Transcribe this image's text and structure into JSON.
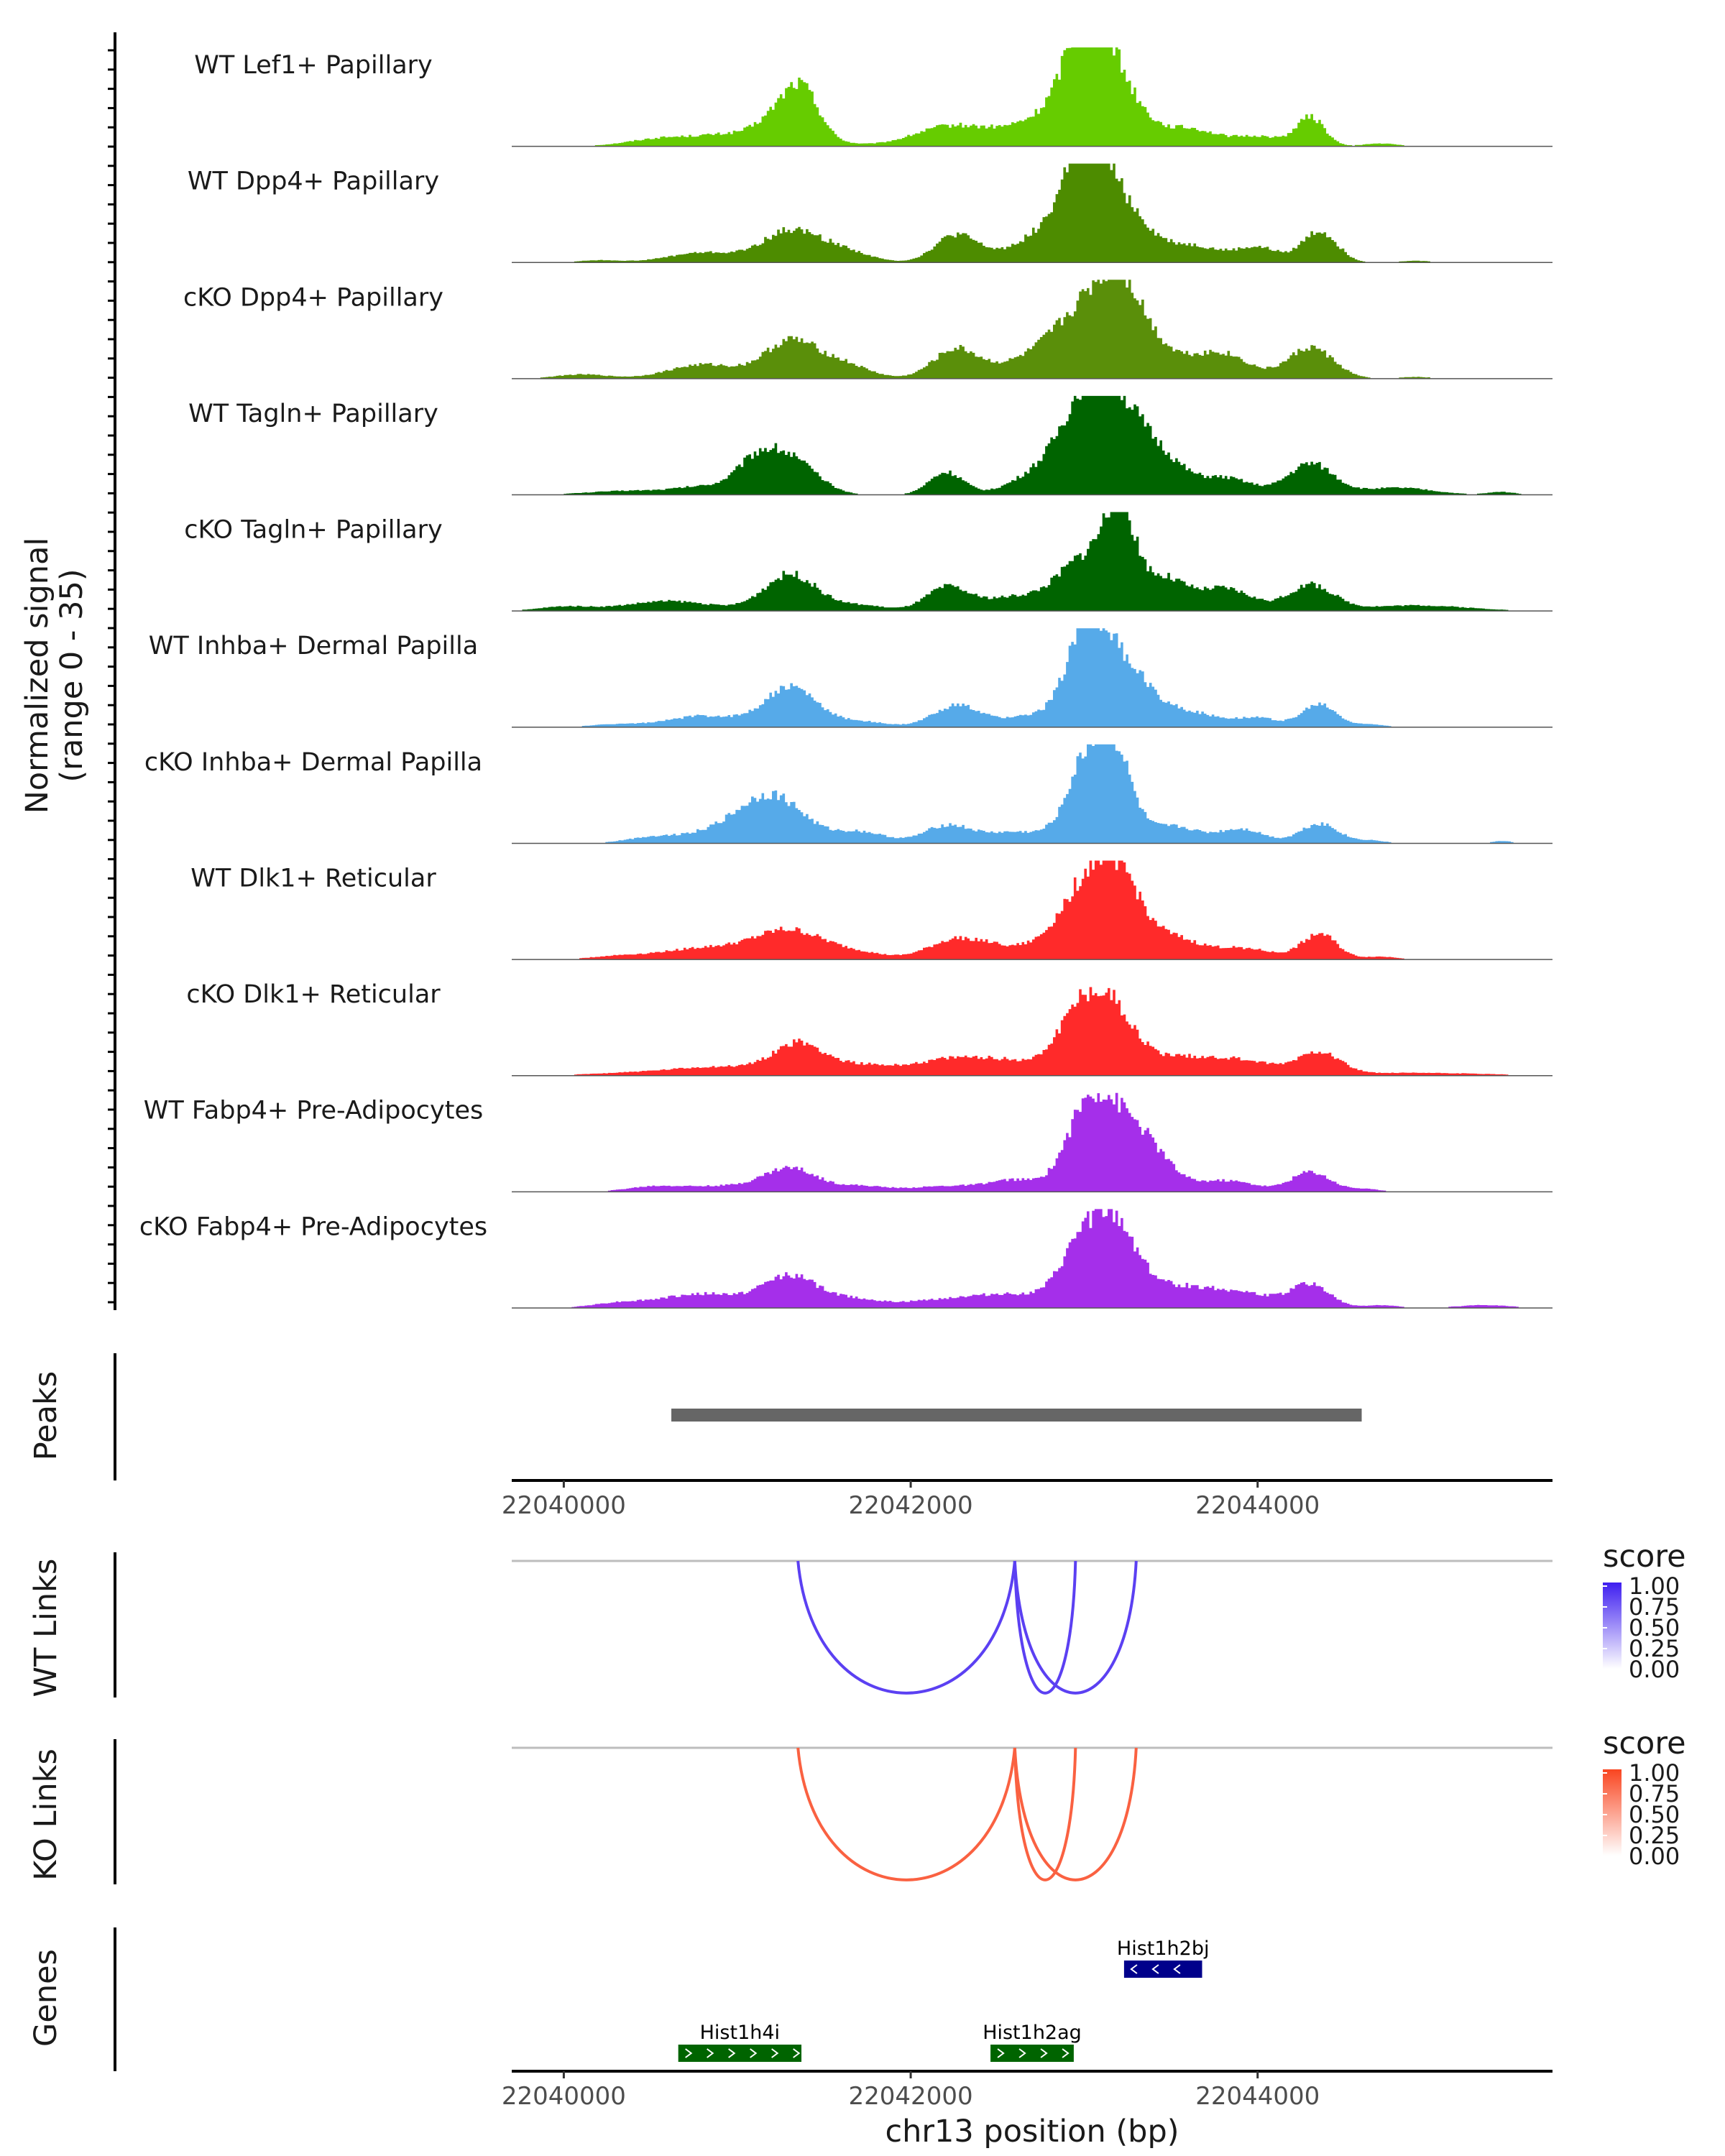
{
  "chart_data": {
    "type": "area",
    "region": {
      "chrom": "chr13",
      "start": 22039700,
      "end": 22045700
    },
    "xlabel": "chr13 position (bp)",
    "x_ticks": [
      22040000,
      22042000,
      22044000
    ],
    "coverage": {
      "ylabel": "Normalized signal",
      "ylabel2": "(range 0 - 35)",
      "ylim": [
        0,
        35
      ],
      "tracks": [
        {
          "name": "WT Lef1+ Papillary",
          "color": "#66CC00",
          "peaks": [
            [
              22040500,
              1.2,
              150
            ],
            [
              22041000,
              4.5,
              350
            ],
            [
              22041300,
              12.0,
              130
            ],
            [
              22041380,
              9.0,
              90
            ],
            [
              22042200,
              6.0,
              200
            ],
            [
              22042700,
              5.0,
              300
            ],
            [
              22043000,
              27.0,
              110
            ],
            [
              22043150,
              22.0,
              160
            ],
            [
              22042900,
              8.0,
              200
            ],
            [
              22043600,
              6.0,
              150
            ],
            [
              22044300,
              10.0,
              80
            ],
            [
              22044000,
              3.5,
              150
            ],
            [
              22044700,
              1.0,
              100
            ]
          ]
        },
        {
          "name": "WT Dpp4+ Papillary",
          "color": "#4D8C00",
          "peaks": [
            [
              22040200,
              0.8,
              120
            ],
            [
              22040800,
              3.5,
              200
            ],
            [
              22041300,
              11.0,
              160
            ],
            [
              22041600,
              4.0,
              150
            ],
            [
              22042250,
              9.0,
              120
            ],
            [
              22042700,
              4.5,
              250
            ],
            [
              22043000,
              31.0,
              100
            ],
            [
              22043180,
              22.0,
              150
            ],
            [
              22042850,
              10.0,
              150
            ],
            [
              22043600,
              6.0,
              180
            ],
            [
              22044000,
              5.0,
              120
            ],
            [
              22044350,
              11.0,
              100
            ],
            [
              22044900,
              0.6,
              100
            ]
          ]
        },
        {
          "name": "cKO Dpp4+ Papillary",
          "color": "#5A8F0A",
          "peaks": [
            [
              22040100,
              1.5,
              150
            ],
            [
              22040800,
              5.0,
              200
            ],
            [
              22041300,
              13.0,
              150
            ],
            [
              22041600,
              5.0,
              150
            ],
            [
              22042250,
              10.0,
              130
            ],
            [
              22042700,
              6.0,
              220
            ],
            [
              22043000,
              20.0,
              180
            ],
            [
              22043200,
              22.0,
              130
            ],
            [
              22043400,
              9.0,
              200
            ],
            [
              22043800,
              8.0,
              150
            ],
            [
              22044300,
              11.0,
              130
            ],
            [
              22044900,
              0.6,
              100
            ]
          ]
        },
        {
          "name": "WT Tagln+ Papillary",
          "color": "#006400",
          "peaks": [
            [
              22040400,
              1.5,
              250
            ],
            [
              22040800,
              2.5,
              150
            ],
            [
              22041100,
              10.0,
              120
            ],
            [
              22041300,
              12.0,
              150
            ],
            [
              22042200,
              8.0,
              100
            ],
            [
              22042700,
              6.0,
              150
            ],
            [
              22043000,
              30.0,
              150
            ],
            [
              22043200,
              24.0,
              150
            ],
            [
              22043450,
              10.0,
              130
            ],
            [
              22043800,
              6.0,
              160
            ],
            [
              22044300,
              11.0,
              130
            ],
            [
              22044800,
              2.5,
              200
            ],
            [
              22045400,
              1.0,
              80
            ]
          ]
        },
        {
          "name": "cKO Tagln+ Papillary",
          "color": "#006400",
          "peaks": [
            [
              22040000,
              1.5,
              150
            ],
            [
              22040600,
              3.5,
              250
            ],
            [
              22041300,
              13.0,
              150
            ],
            [
              22041700,
              2.0,
              150
            ],
            [
              22042200,
              8.0,
              120
            ],
            [
              22042600,
              5.0,
              200
            ],
            [
              22043000,
              18.0,
              150
            ],
            [
              22043200,
              31.0,
              90
            ],
            [
              22043450,
              11.0,
              120
            ],
            [
              22043800,
              8.0,
              160
            ],
            [
              22044300,
              9.0,
              130
            ],
            [
              22044900,
              2.0,
              300
            ]
          ]
        },
        {
          "name": "WT Inhba+ Dermal Papilla",
          "color": "#56AAE9",
          "peaks": [
            [
              22040300,
              1.0,
              150
            ],
            [
              22040800,
              4.0,
              200
            ],
            [
              22041300,
              14.0,
              150
            ],
            [
              22041700,
              2.0,
              150
            ],
            [
              22042250,
              7.5,
              130
            ],
            [
              22042700,
              4.0,
              200
            ],
            [
              22043000,
              28.0,
              110
            ],
            [
              22043200,
              22.0,
              160
            ],
            [
              22043600,
              5.0,
              180
            ],
            [
              22044000,
              3.0,
              120
            ],
            [
              22044350,
              8.0,
              100
            ],
            [
              22044650,
              1.0,
              80
            ]
          ]
        },
        {
          "name": "cKO Inhba+ Dermal Papilla",
          "color": "#56AAE9",
          "peaks": [
            [
              22040500,
              2.0,
              150
            ],
            [
              22040900,
              4.0,
              200
            ],
            [
              22041200,
              16.0,
              180
            ],
            [
              22041700,
              4.0,
              150
            ],
            [
              22042200,
              6.0,
              130
            ],
            [
              22042600,
              4.0,
              200
            ],
            [
              22043000,
              26.0,
              110
            ],
            [
              22043170,
              29.0,
              100
            ],
            [
              22043500,
              6.0,
              150
            ],
            [
              22043900,
              5.0,
              130
            ],
            [
              22044350,
              7.0,
              110
            ],
            [
              22044650,
              1.0,
              80
            ],
            [
              22045400,
              0.8,
              60
            ]
          ]
        },
        {
          "name": "WT Dlk1+ Reticular",
          "color": "#FF2A2A",
          "peaks": [
            [
              22040300,
              1.0,
              150
            ],
            [
              22040800,
              4.0,
              250
            ],
            [
              22041300,
              10.0,
              200
            ],
            [
              22041700,
              2.0,
              150
            ],
            [
              22042250,
              6.0,
              160
            ],
            [
              22042600,
              4.0,
              250
            ],
            [
              22043000,
              23.0,
              150
            ],
            [
              22043200,
              24.0,
              130
            ],
            [
              22043500,
              7.0,
              150
            ],
            [
              22043900,
              4.0,
              180
            ],
            [
              22044350,
              9.0,
              100
            ],
            [
              22044700,
              1.0,
              100
            ]
          ]
        },
        {
          "name": "cKO Dlk1+ Reticular",
          "color": "#FF2A2A",
          "peaks": [
            [
              22040400,
              1.0,
              250
            ],
            [
              22040900,
              3.0,
              250
            ],
            [
              22041350,
              11.0,
              150
            ],
            [
              22041700,
              3.0,
              150
            ],
            [
              22042200,
              5.0,
              250
            ],
            [
              22042600,
              4.0,
              250
            ],
            [
              22042950,
              18.0,
              120
            ],
            [
              22043150,
              22.0,
              130
            ],
            [
              22043500,
              6.0,
              200
            ],
            [
              22043900,
              5.0,
              200
            ],
            [
              22044350,
              8.0,
              120
            ],
            [
              22044900,
              1.0,
              400
            ]
          ]
        },
        {
          "name": "WT Fabp4+ Pre-Adipocytes",
          "color": "#A52FEA",
          "peaks": [
            [
              22040500,
              1.5,
              150
            ],
            [
              22040900,
              2.0,
              250
            ],
            [
              22041300,
              8.0,
              150
            ],
            [
              22041700,
              2.0,
              150
            ],
            [
              22042200,
              2.0,
              200
            ],
            [
              22042600,
              4.0,
              150
            ],
            [
              22043000,
              26.0,
              120
            ],
            [
              22043200,
              22.0,
              130
            ],
            [
              22043400,
              10.0,
              120
            ],
            [
              22043800,
              4.0,
              180
            ],
            [
              22044300,
              7.0,
              110
            ],
            [
              22044600,
              1.0,
              100
            ]
          ]
        },
        {
          "name": "cKO Fabp4+ Pre-Adipocytes",
          "color": "#A52FEA",
          "peaks": [
            [
              22040300,
              1.5,
              150
            ],
            [
              22040800,
              5.0,
              250
            ],
            [
              22041300,
              11.0,
              150
            ],
            [
              22041650,
              3.0,
              150
            ],
            [
              22042200,
              3.0,
              250
            ],
            [
              22042600,
              4.0,
              200
            ],
            [
              22043000,
              24.0,
              130
            ],
            [
              22043200,
              21.0,
              120
            ],
            [
              22043500,
              7.0,
              200
            ],
            [
              22043900,
              5.0,
              200
            ],
            [
              22044300,
              8.0,
              110
            ],
            [
              22044700,
              1.0,
              100
            ],
            [
              22045300,
              1.0,
              150
            ]
          ]
        }
      ]
    },
    "peaks_track": {
      "label": "Peaks",
      "color": "#666666",
      "ranges": [
        [
          22040620,
          22044600
        ]
      ]
    },
    "links": [
      {
        "label": "WT Links",
        "legend_title": "score",
        "color_high": "#3E1EF0",
        "arcs": [
          [
            22041350,
            22042600
          ],
          [
            22042600,
            22043300
          ],
          [
            22042600,
            22042950
          ]
        ]
      },
      {
        "label": "KO Links",
        "legend_title": "score",
        "color_high": "#F94520",
        "arcs": [
          [
            22041350,
            22042600
          ],
          [
            22042600,
            22043300
          ],
          [
            22042600,
            22042950
          ]
        ]
      }
    ],
    "legend_ticks": [
      "1.00",
      "0.75",
      "0.50",
      "0.25",
      "0.00"
    ],
    "genes": {
      "label": "Genes",
      "items": [
        {
          "name": "Hist1h2bj",
          "start": 22043230,
          "end": 22043680,
          "strand": "-",
          "row": 0,
          "color": "#00008B"
        },
        {
          "name": "Hist1h4i",
          "start": 22040660,
          "end": 22041370,
          "strand": "+",
          "row": 1,
          "color": "#006400"
        },
        {
          "name": "Hist1h2ag",
          "start": 22042460,
          "end": 22042940,
          "strand": "+",
          "row": 1,
          "color": "#006400"
        }
      ]
    }
  }
}
